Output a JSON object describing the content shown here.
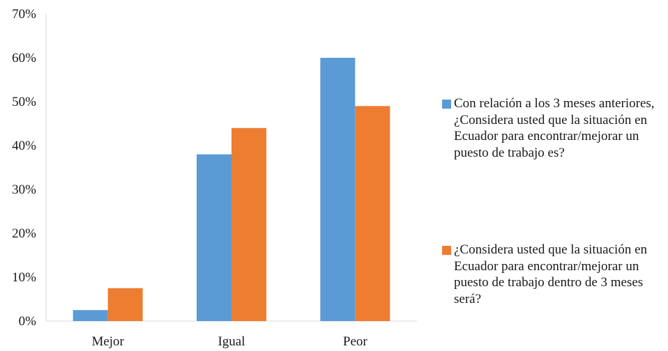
{
  "chart_data": {
    "type": "bar",
    "categories": [
      "Mejor",
      "Igual",
      "Peor"
    ],
    "series": [
      {
        "name": "Con relación a los 3 meses anteriores, ¿Considera usted que la situación en Ecuador para encontrar/mejorar un puesto de trabajo es?",
        "values": [
          2.5,
          38,
          60
        ],
        "color": "#5b9bd5"
      },
      {
        "name": "¿Considera usted que la situación en Ecuador para encontrar/mejorar un puesto de trabajo dentro de 3 meses será?",
        "values": [
          7.5,
          44,
          49
        ],
        "color": "#ed7d31"
      }
    ],
    "ylim": [
      0,
      70
    ],
    "yticks": [
      "0%",
      "10%",
      "20%",
      "30%",
      "40%",
      "50%",
      "60%",
      "70%"
    ],
    "ytick_values": [
      0,
      10,
      20,
      30,
      40,
      50,
      60,
      70
    ],
    "grid": false,
    "legend_position": "right",
    "title": "",
    "xlabel": "",
    "ylabel": ""
  }
}
